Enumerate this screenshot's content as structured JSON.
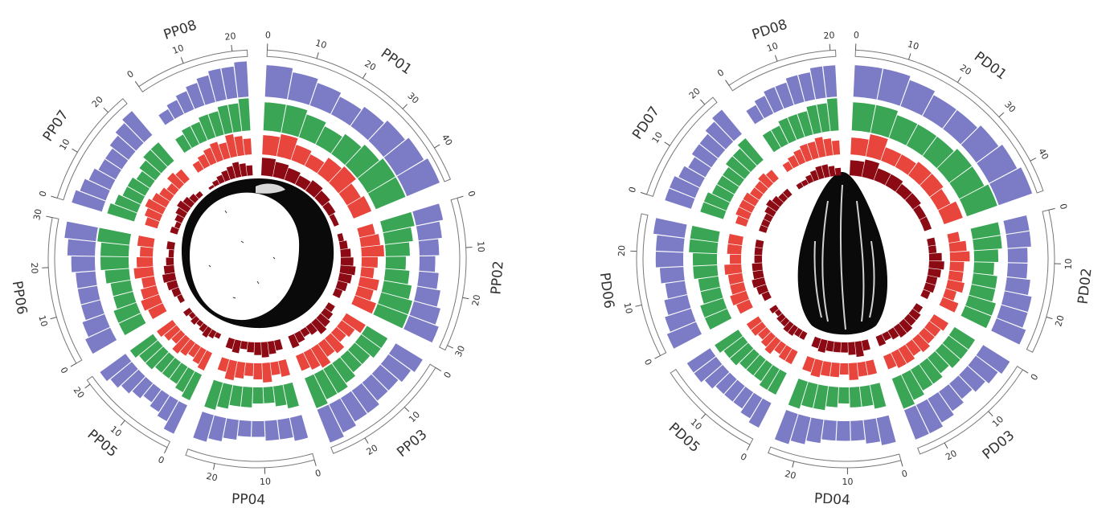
{
  "chart_data": [
    {
      "type": "circos",
      "chromosomes": [
        {
          "name": "PP01",
          "length": 47,
          "ticks": [
            0,
            10,
            20,
            30,
            40
          ]
        },
        {
          "name": "PP02",
          "length": 31,
          "ticks": [
            0,
            10,
            20,
            30
          ]
        },
        {
          "name": "PP03",
          "length": 27,
          "ticks": [
            0,
            10,
            20
          ]
        },
        {
          "name": "PP04",
          "length": 26,
          "ticks": [
            0,
            10,
            20
          ]
        },
        {
          "name": "PP05",
          "length": 21,
          "ticks": [
            0,
            10,
            20
          ]
        },
        {
          "name": "PP06",
          "length": 30,
          "ticks": [
            0,
            10,
            20,
            30
          ]
        },
        {
          "name": "PP07",
          "length": 24,
          "ticks": [
            0,
            10,
            20
          ]
        },
        {
          "name": "PP08",
          "length": 23,
          "ticks": [
            0,
            10,
            20
          ]
        }
      ],
      "tracks": [
        {
          "color": "#7b7bc6",
          "values": [
            [
              8,
              7,
              6,
              5,
              6,
              7,
              8,
              9
            ],
            [
              7,
              6,
              5,
              4,
              5,
              6,
              7,
              8
            ],
            [
              8,
              7,
              6,
              6,
              7,
              7,
              8,
              9
            ],
            [
              6,
              5,
              5,
              4,
              4,
              5,
              6,
              7
            ],
            [
              8,
              6,
              5,
              4,
              5,
              6,
              7,
              8
            ],
            [
              7,
              6,
              5,
              5,
              5,
              6,
              7,
              8
            ],
            [
              8,
              7,
              6,
              5,
              5,
              6,
              7,
              8
            ],
            [
              3,
              4,
              5,
              6,
              7,
              8,
              8,
              9
            ]
          ]
        },
        {
          "color": "#3aa655",
          "values": [
            [
              7,
              7,
              6,
              5,
              6,
              7,
              8,
              8
            ],
            [
              8,
              7,
              6,
              5,
              6,
              7,
              8,
              8
            ],
            [
              6,
              6,
              5,
              5,
              6,
              7,
              7,
              8
            ],
            [
              6,
              5,
              4,
              4,
              5,
              5,
              6,
              7
            ],
            [
              7,
              6,
              5,
              5,
              5,
              6,
              6,
              7
            ],
            [
              6,
              6,
              5,
              5,
              6,
              7,
              7,
              8
            ],
            [
              7,
              6,
              5,
              5,
              4,
              5,
              6,
              6
            ],
            [
              4,
              5,
              5,
              6,
              6,
              7,
              7,
              8
            ]
          ]
        },
        {
          "color": "#e8453c",
          "values": [
            [
              6,
              7,
              5,
              4,
              6,
              7,
              5,
              6
            ],
            [
              5,
              6,
              7,
              5,
              4,
              6,
              5,
              7
            ],
            [
              7,
              5,
              4,
              6,
              5,
              7,
              6,
              5
            ],
            [
              5,
              4,
              6,
              5,
              4,
              5,
              6,
              4
            ],
            [
              6,
              5,
              4,
              5,
              6,
              4,
              5,
              6
            ],
            [
              5,
              6,
              5,
              4,
              6,
              5,
              4,
              5
            ],
            [
              4,
              5,
              6,
              5,
              4,
              3,
              5,
              4
            ],
            [
              3,
              4,
              5,
              6,
              5,
              7,
              6,
              5
            ]
          ]
        },
        {
          "color": "#8b0a14",
          "values": [
            [
              7,
              6,
              5,
              4,
              5,
              4,
              3,
              2
            ],
            [
              2,
              3,
              4,
              5,
              6,
              5,
              4,
              3
            ],
            [
              3,
              4,
              5,
              6,
              4,
              3,
              4,
              5
            ],
            [
              4,
              5,
              6,
              5,
              4,
              3,
              5,
              4
            ],
            [
              2,
              3,
              4,
              3,
              2,
              3,
              2,
              3
            ],
            [
              2,
              3,
              4,
              5,
              4,
              3,
              2,
              3
            ],
            [
              3,
              2,
              3,
              4,
              5,
              4,
              3,
              2
            ],
            [
              1,
              2,
              3,
              4,
              5,
              6,
              5,
              4
            ]
          ]
        }
      ]
    },
    {
      "type": "circos",
      "chromosomes": [
        {
          "name": "PD01",
          "length": 46,
          "ticks": [
            0,
            10,
            20,
            30,
            40
          ]
        },
        {
          "name": "PD02",
          "length": 27,
          "ticks": [
            0,
            10,
            20
          ]
        },
        {
          "name": "PD03",
          "length": 25,
          "ticks": [
            0,
            10,
            20
          ]
        },
        {
          "name": "PD04",
          "length": 25,
          "ticks": [
            0,
            10,
            20
          ]
        },
        {
          "name": "PD05",
          "length": 20,
          "ticks": [
            0,
            10
          ]
        },
        {
          "name": "PD06",
          "length": 27,
          "ticks": [
            0,
            10,
            20
          ]
        },
        {
          "name": "PD07",
          "length": 22,
          "ticks": [
            0,
            10,
            20
          ]
        },
        {
          "name": "PD08",
          "length": 21,
          "ticks": [
            0,
            10,
            20
          ]
        }
      ],
      "tracks": [
        {
          "color": "#7b7bc6",
          "values": [
            [
              8,
              8,
              7,
              6,
              6,
              7,
              8,
              9
            ],
            [
              6,
              6,
              5,
              5,
              6,
              7,
              7,
              8
            ],
            [
              8,
              7,
              6,
              5,
              6,
              7,
              8,
              8
            ],
            [
              7,
              6,
              5,
              5,
              5,
              6,
              7,
              8
            ],
            [
              7,
              6,
              5,
              5,
              5,
              6,
              7,
              7
            ],
            [
              8,
              7,
              6,
              5,
              6,
              7,
              7,
              8
            ],
            [
              7,
              7,
              6,
              5,
              6,
              6,
              7,
              8
            ],
            [
              4,
              5,
              6,
              6,
              7,
              7,
              8,
              8
            ]
          ]
        },
        {
          "color": "#3aa655",
          "values": [
            [
              7,
              7,
              6,
              6,
              6,
              7,
              7,
              8
            ],
            [
              7,
              7,
              6,
              5,
              6,
              6,
              7,
              7
            ],
            [
              6,
              6,
              6,
              5,
              6,
              6,
              7,
              8
            ],
            [
              6,
              5,
              5,
              4,
              5,
              6,
              6,
              7
            ],
            [
              6,
              6,
              5,
              5,
              5,
              6,
              6,
              7
            ],
            [
              6,
              6,
              5,
              5,
              6,
              6,
              7,
              7
            ],
            [
              6,
              6,
              5,
              5,
              5,
              6,
              6,
              7
            ],
            [
              5,
              5,
              6,
              6,
              6,
              7,
              7,
              8
            ]
          ]
        },
        {
          "color": "#e8453c",
          "values": [
            [
              6,
              8,
              5,
              5,
              6,
              6,
              5,
              7
            ],
            [
              4,
              6,
              7,
              5,
              5,
              6,
              4,
              6
            ],
            [
              6,
              5,
              5,
              6,
              5,
              6,
              6,
              5
            ],
            [
              5,
              5,
              6,
              4,
              5,
              5,
              6,
              5
            ],
            [
              5,
              5,
              4,
              6,
              5,
              4,
              5,
              5
            ],
            [
              5,
              6,
              5,
              5,
              6,
              4,
              5,
              5
            ],
            [
              4,
              5,
              5,
              5,
              4,
              4,
              5,
              4
            ],
            [
              3,
              4,
              5,
              6,
              6,
              7,
              6,
              5
            ]
          ]
        },
        {
          "color": "#8b0a14",
          "values": [
            [
              6,
              7,
              5,
              5,
              4,
              4,
              3,
              3
            ],
            [
              3,
              3,
              5,
              6,
              5,
              4,
              4,
              3
            ],
            [
              3,
              4,
              4,
              5,
              5,
              4,
              3,
              4
            ],
            [
              4,
              6,
              5,
              4,
              4,
              4,
              5,
              4
            ],
            [
              3,
              3,
              4,
              4,
              3,
              3,
              2,
              3
            ],
            [
              3,
              4,
              5,
              4,
              4,
              3,
              3,
              3
            ],
            [
              3,
              3,
              3,
              4,
              5,
              4,
              3,
              3
            ],
            [
              2,
              2,
              3,
              4,
              5,
              5,
              4,
              3
            ]
          ]
        }
      ]
    }
  ]
}
